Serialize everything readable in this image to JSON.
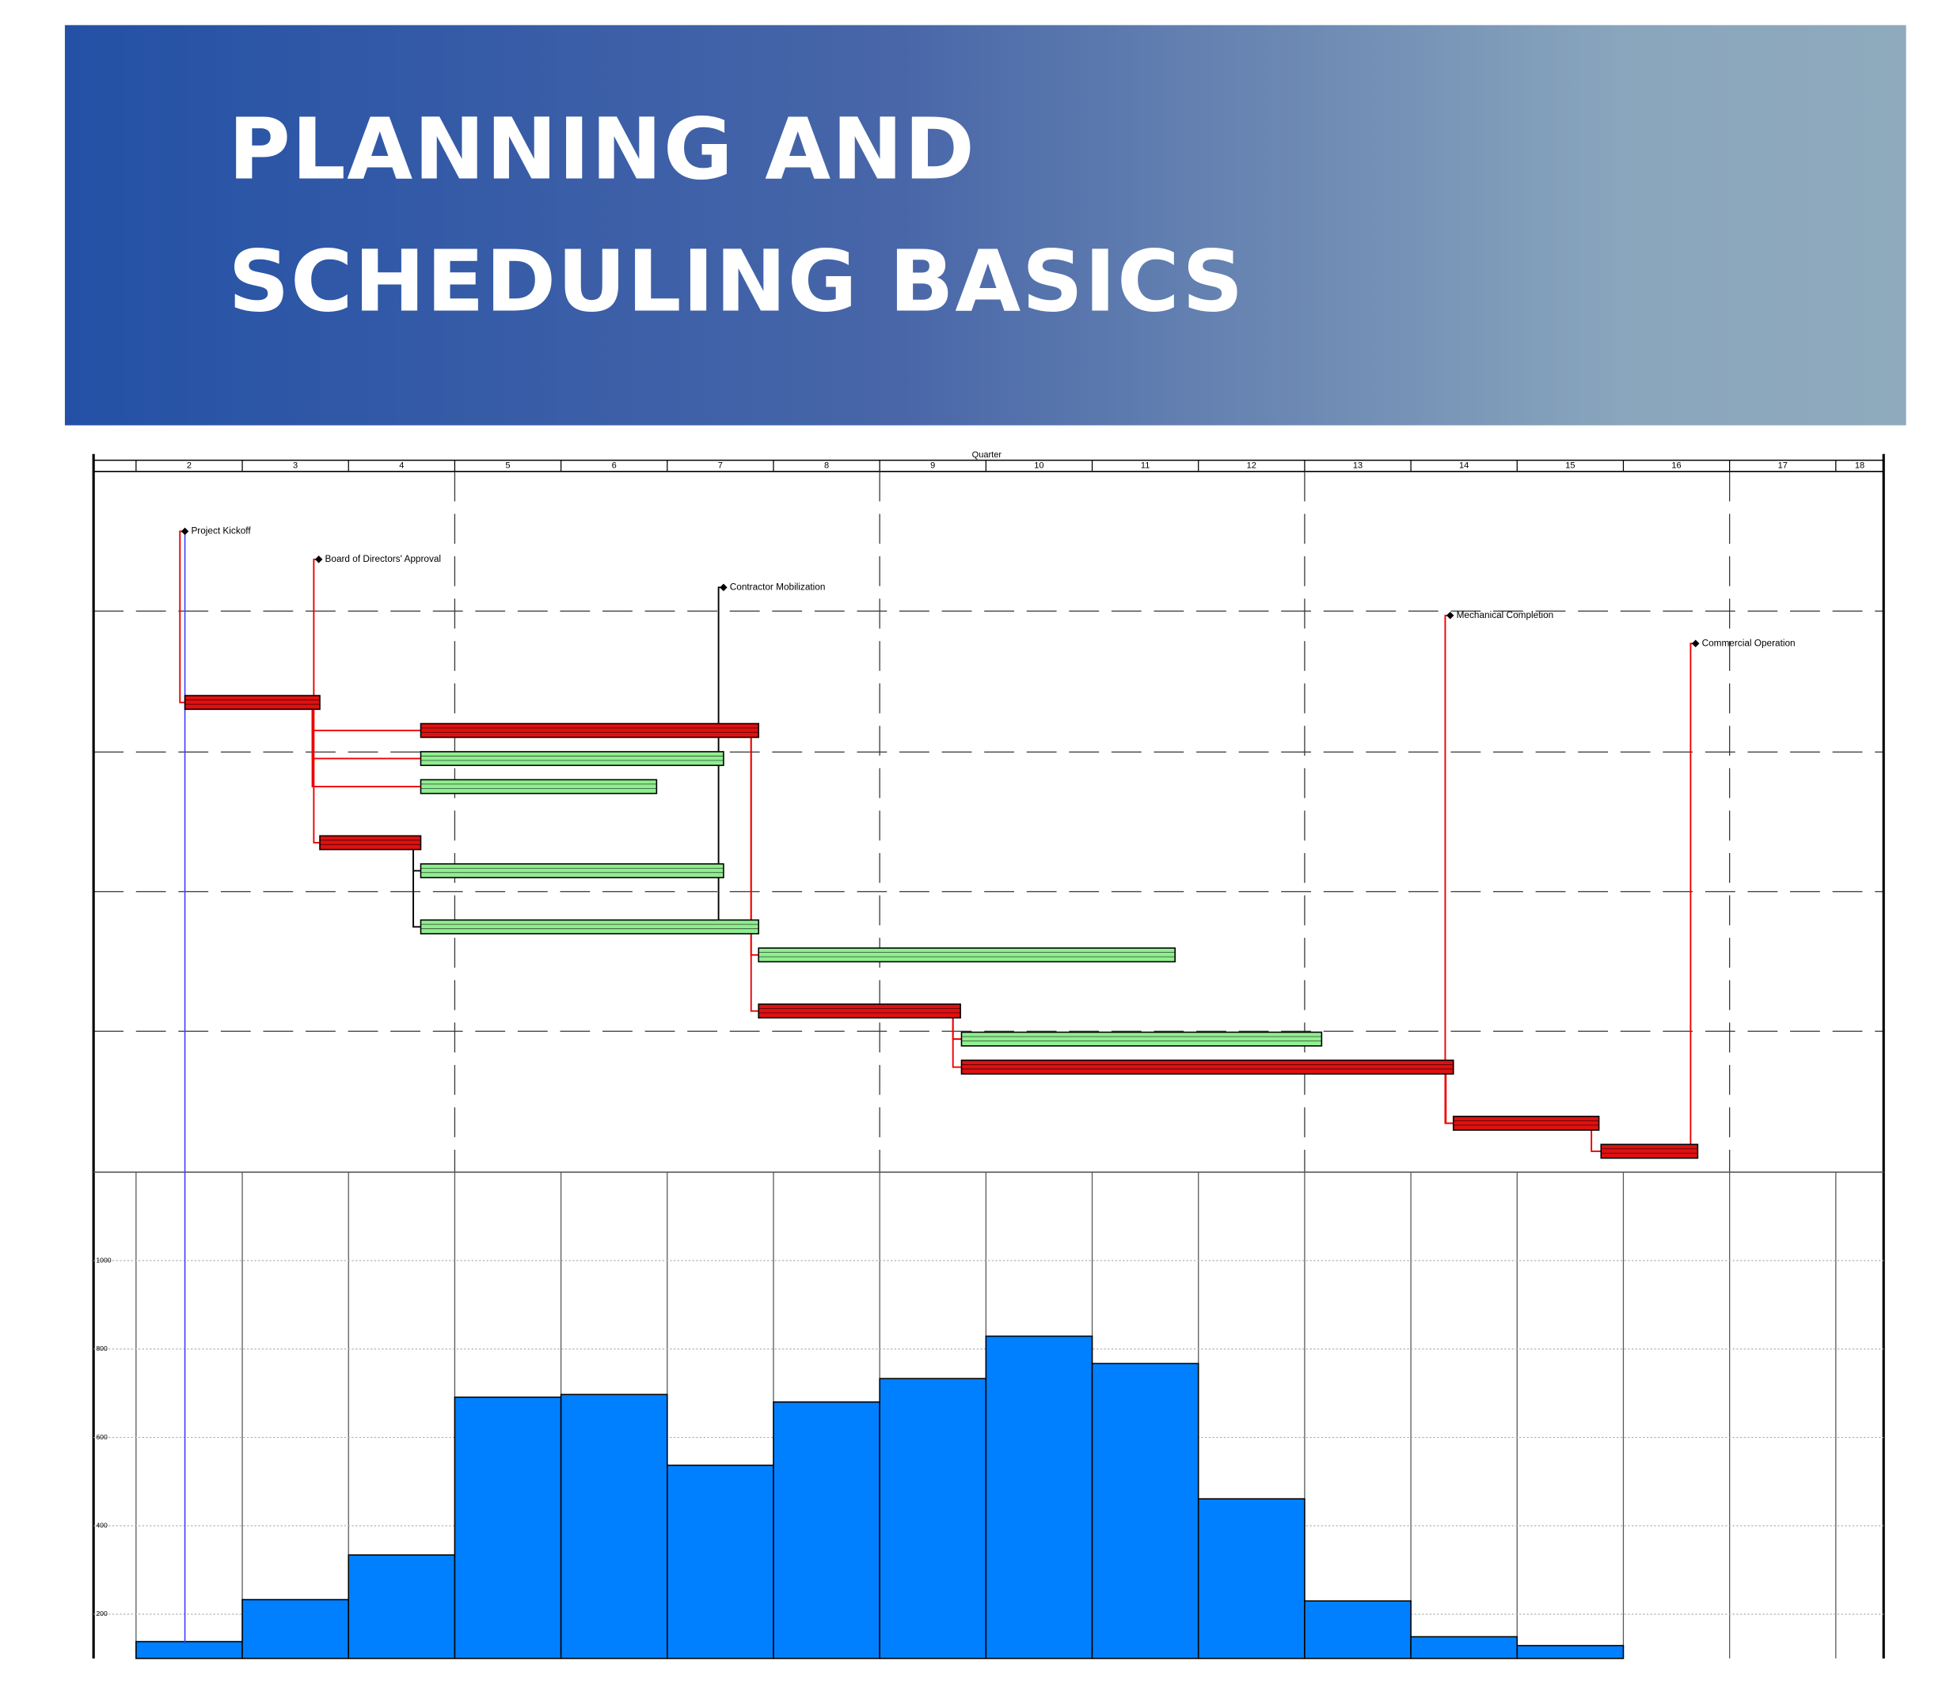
{
  "title_lines": [
    "PLANNING AND",
    "SCHEDULING BASICS"
  ],
  "chart_data": [
    {
      "type": "gantt",
      "axis_label": "Quarter",
      "quarters": [
        2,
        3,
        4,
        5,
        6,
        7,
        8,
        9,
        10,
        11,
        12,
        13,
        14,
        15,
        16,
        17,
        18
      ],
      "xlim": [
        0.6,
        17.45
      ],
      "year_ticks": [
        4,
        8,
        12,
        16
      ],
      "status_date": 1.46,
      "milestones": [
        {
          "label": "Project Kickoff",
          "date": 1.46
        },
        {
          "label": "Board of Directors' Approval",
          "date": 2.72
        },
        {
          "label": "Contractor Mobilization",
          "date": 6.53
        },
        {
          "label": "Mechanical Completion",
          "date": 13.37
        },
        {
          "label": "Commercial Operation",
          "date": 15.68
        }
      ],
      "tasks": [
        {
          "start": 1.46,
          "end": 2.73,
          "color": "#e01010"
        },
        {
          "start": 3.68,
          "end": 6.86,
          "color": "#e01010"
        },
        {
          "start": 3.68,
          "end": 6.53,
          "color": "#90ee90"
        },
        {
          "start": 3.68,
          "end": 5.9,
          "color": "#90ee90"
        },
        {
          "start": 2.73,
          "end": 3.68,
          "color": "#e01010"
        },
        {
          "start": 3.68,
          "end": 6.53,
          "color": "#90ee90"
        },
        {
          "start": 3.68,
          "end": 6.86,
          "color": "#90ee90"
        },
        {
          "start": 6.86,
          "end": 10.78,
          "color": "#90ee90"
        },
        {
          "start": 6.86,
          "end": 8.76,
          "color": "#e01010"
        },
        {
          "start": 8.77,
          "end": 12.16,
          "color": "#90ee90"
        },
        {
          "start": 8.77,
          "end": 13.4,
          "color": "#e01010"
        },
        {
          "start": 13.4,
          "end": 14.77,
          "color": "#e01010"
        },
        {
          "start": 14.79,
          "end": 15.7,
          "color": "#e01010"
        }
      ]
    },
    {
      "type": "histogram",
      "bins": [
        1,
        2,
        3,
        4,
        5,
        6,
        7,
        8,
        9,
        10,
        11,
        12,
        13,
        14,
        15
      ],
      "values": [
        138,
        233,
        334,
        691,
        697,
        537,
        680,
        733,
        829,
        767,
        461,
        230,
        149,
        129
      ],
      "color": "#0080ff",
      "ylim": [
        100,
        1200
      ],
      "yticks": [
        200,
        400,
        600,
        800,
        1000
      ],
      "grid": true
    }
  ]
}
